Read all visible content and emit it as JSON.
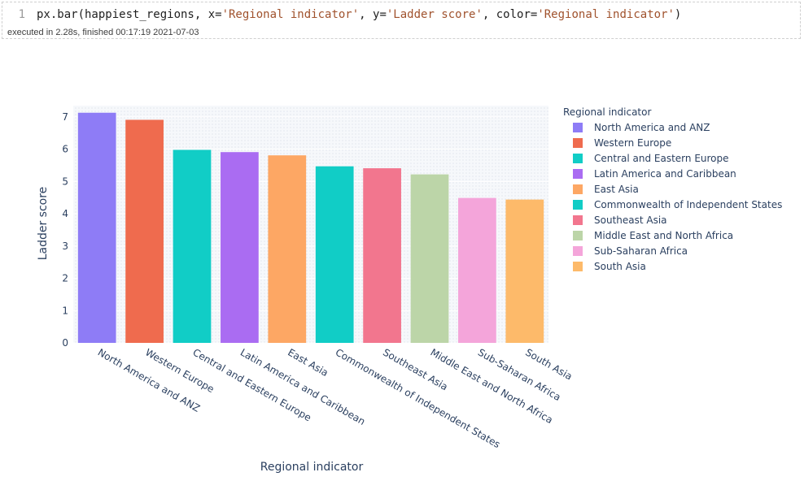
{
  "cell": {
    "line_number": "1",
    "code": {
      "call": "px.bar(happiest_regions, x=",
      "x_arg": "'Regional indicator'",
      "y_kw": ", y=",
      "y_arg": "'Ladder score'",
      "color_kw": ", color=",
      "color_arg": "'Regional indicator'",
      "close": ")"
    },
    "status": "executed in 2.28s, finished 00:17:19 2021-07-03"
  },
  "chart_data": {
    "type": "bar",
    "categories": [
      "North America and ANZ",
      "Western Europe",
      "Central and Eastern Europe",
      "Latin America and Caribbean",
      "East Asia",
      "Commonwealth of Independent States",
      "Southeast Asia",
      "Middle East and North Africa",
      "Sub-Saharan Africa",
      "South Asia"
    ],
    "values": [
      7.13,
      6.91,
      5.98,
      5.91,
      5.81,
      5.47,
      5.41,
      5.22,
      4.49,
      4.44
    ],
    "colors": [
      "#8E7CF6",
      "#EF6B4E",
      "#11CDC6",
      "#AA6CF2",
      "#FDA764",
      "#11CDC6",
      "#F2768E",
      "#BCD5A8",
      "#F4A5DA",
      "#FDBA6A"
    ],
    "title": "",
    "xlabel": "Regional indicator",
    "ylabel": "Ladder score",
    "ylim": [
      0,
      7.35
    ],
    "yticks": [
      "0",
      "1",
      "2",
      "3",
      "4",
      "5",
      "6",
      "7"
    ],
    "legend_title": "Regional indicator",
    "legend_position": "right",
    "grid": true,
    "plot_background": "#E5ECF6"
  }
}
